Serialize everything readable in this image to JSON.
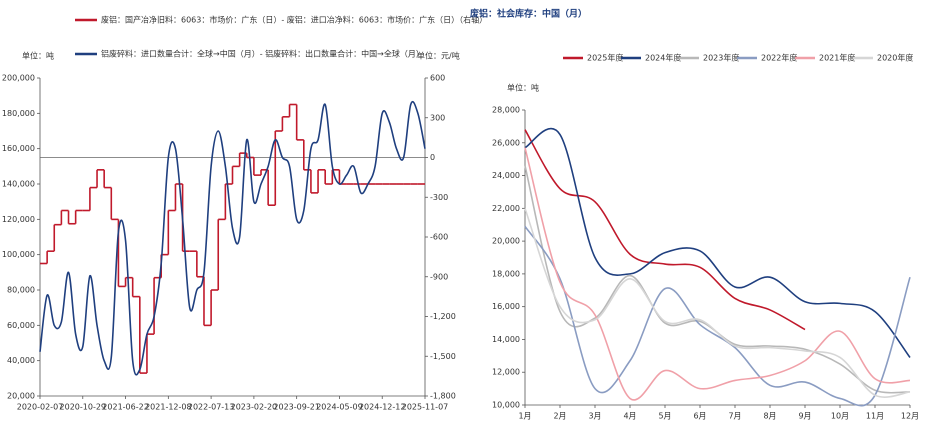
{
  "chart_data": [
    {
      "type": "line",
      "y_unit": "单位：吨",
      "y2_unit": "单位：元/吨",
      "categories": [
        "2020-02-07",
        null,
        null,
        null,
        null,
        null,
        "2020-10-29",
        null,
        null,
        null,
        null,
        null,
        "2021-06-22",
        null,
        null,
        null,
        null,
        null,
        "2021-12-08",
        null,
        null,
        null,
        null,
        null,
        "2022-07-13",
        null,
        null,
        null,
        null,
        null,
        "2023-02-20",
        null,
        null,
        null,
        null,
        null,
        "2023-09-21",
        null,
        null,
        null,
        null,
        null,
        "2024-05-09",
        null,
        null,
        null,
        null,
        null,
        "2024-12-12",
        null,
        null,
        null,
        null,
        null,
        "2025-11-07"
      ],
      "series": [
        {
          "name": "废铝：国产冶净旧料：6063：市场价：广东（日）- 废铝：进口冶净料：6063：市场价：广东（日）（右轴）",
          "color": "#c0192b",
          "axis": "y2",
          "step": true,
          "values": [
            -800,
            -707,
            -507,
            -400,
            -500,
            -400,
            -400,
            -227,
            -93,
            -227,
            -467,
            -973,
            -907,
            -1050,
            -1627,
            -1333,
            -907,
            -733,
            -400,
            -200,
            -707,
            -707,
            -900,
            -1267,
            -1000,
            -467,
            -200,
            -67,
            33,
            0,
            -133,
            -93,
            -360,
            200,
            307,
            400,
            133,
            -93,
            -267,
            -93,
            -200,
            -93,
            -200,
            -200,
            -200,
            -200,
            -200,
            -200,
            -200,
            -200,
            -200,
            -200,
            -200,
            -200,
            -200
          ]
        },
        {
          "name": "铝废碎料：进口数量合计：全球→中国（月）- 铝废碎料：出口数量合计：中国→全球（月）",
          "color": "#1f3f7f",
          "smooth": true,
          "values": [
            45000,
            77000,
            60000,
            62000,
            90000,
            55000,
            48000,
            88000,
            60000,
            40000,
            42000,
            113000,
            108000,
            40000,
            35000,
            55000,
            65000,
            95000,
            155000,
            160000,
            120000,
            70000,
            80000,
            90000,
            150000,
            170000,
            150000,
            115000,
            110000,
            165000,
            130000,
            140000,
            150000,
            165000,
            155000,
            150000,
            120000,
            125000,
            160000,
            165000,
            185000,
            150000,
            140000,
            145000,
            150000,
            135000,
            140000,
            150000,
            180000,
            175000,
            160000,
            155000,
            185000,
            180000,
            160000
          ]
        }
      ],
      "ylim": [
        20000,
        200000
      ],
      "yticks": [
        {
          "value": 20000,
          "label": "20,000"
        },
        {
          "value": 40000,
          "label": "40,000"
        },
        {
          "value": 60000,
          "label": "60,000"
        },
        {
          "value": 80000,
          "label": "80,000"
        },
        {
          "value": 100000,
          "label": "100,000"
        },
        {
          "value": 120000,
          "label": "120,000"
        },
        {
          "value": 140000,
          "label": "140,000"
        },
        {
          "value": 160000,
          "label": "160,000"
        },
        {
          "value": 180000,
          "label": "180,000"
        },
        {
          "value": 200000,
          "label": "200,000"
        }
      ],
      "y2lim": [
        -1800,
        600
      ],
      "y2ticks": [
        600,
        300,
        0,
        -300,
        -600,
        -900,
        {
          "value": -1200,
          "label": "-1,200"
        },
        {
          "value": -1500,
          "label": "-1,500"
        },
        {
          "value": -1800,
          "label": "-1,800"
        }
      ],
      "reference_line": {
        "axis": "y2",
        "value": 0
      }
    },
    {
      "type": "line",
      "title": "废铝：社会库存：中国（月）",
      "y_unit": "单位：吨",
      "categories": [
        "1月",
        "2月",
        "3月",
        "4月",
        "5月",
        "6月",
        "7月",
        "8月",
        "9月",
        "10月",
        "11月",
        "12月"
      ],
      "series": [
        {
          "name": "2025年度",
          "color": "#c0192b",
          "smooth": true,
          "values": [
            26800,
            23200,
            22400,
            19200,
            18600,
            18400,
            16500,
            15800,
            14600,
            null,
            null,
            null
          ]
        },
        {
          "name": "2024年度",
          "color": "#1f3f7f",
          "smooth": true,
          "values": [
            25700,
            26500,
            19000,
            18000,
            19300,
            19400,
            17200,
            17800,
            16300,
            16200,
            15700,
            12900
          ]
        },
        {
          "name": "2023年度",
          "color": "#b8b8b8",
          "smooth": true,
          "values": [
            24600,
            15700,
            15300,
            17900,
            15000,
            15100,
            13700,
            13600,
            13400,
            12500,
            10900,
            10800
          ]
        },
        {
          "name": "2022年度",
          "color": "#8a9cc2",
          "smooth": true,
          "values": [
            20900,
            17700,
            11000,
            12700,
            17100,
            14900,
            13500,
            11200,
            11400,
            10400,
            10600,
            17800
          ]
        },
        {
          "name": "2021年度",
          "color": "#f0a0a8",
          "smooth": true,
          "values": [
            25700,
            17500,
            15500,
            10400,
            12100,
            11000,
            11500,
            11800,
            12700,
            14500,
            11600,
            11500
          ]
        },
        {
          "name": "2020年度",
          "color": "#d6d6d6",
          "smooth": true,
          "values": [
            22000,
            16000,
            15200,
            17700,
            15100,
            15200,
            13600,
            13500,
            13300,
            12900,
            10600,
            10800
          ]
        }
      ],
      "ylim": [
        10000,
        28000
      ],
      "yticks": [
        {
          "value": 10000,
          "label": "10,000"
        },
        {
          "value": 12000,
          "label": "12,000"
        },
        {
          "value": 14000,
          "label": "14,000"
        },
        {
          "value": 16000,
          "label": "16,000"
        },
        {
          "value": 18000,
          "label": "18,000"
        },
        {
          "value": 20000,
          "label": "20,000"
        },
        {
          "value": 22000,
          "label": "22,000"
        },
        {
          "value": 24000,
          "label": "24,000"
        },
        {
          "value": 26000,
          "label": "26,000"
        },
        {
          "value": 28000,
          "label": "28,000"
        }
      ]
    }
  ]
}
